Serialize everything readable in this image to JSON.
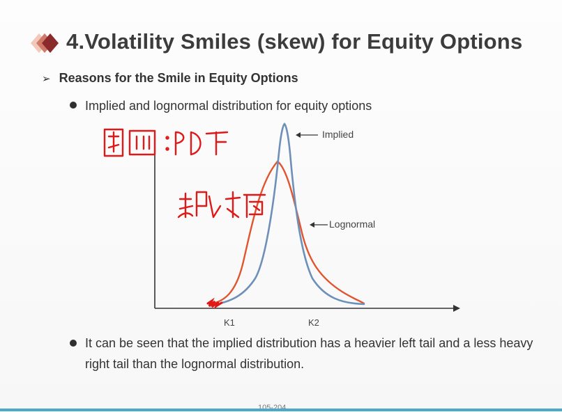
{
  "slide": {
    "title": "4.Volatility Smiles (skew) for Equity Options",
    "sub_heading": "Reasons for the Smile in Equity Options",
    "bullets": [
      "Implied and lognormal distribution for equity options",
      "It can be seen that the implied distribution has a heavier left tail and a less heavy right tail than the lognormal distribution."
    ],
    "page_number": "105-204",
    "accent_color": "#8b2a2a",
    "bottom_bar_color": "#4aa8c9"
  },
  "chart_data": {
    "type": "line",
    "labels": {
      "implied": "Implied",
      "lognormal": "Lognormal",
      "k1": "K1",
      "k2": "K2"
    },
    "series": [
      {
        "name": "Implied",
        "color": "#6d8fb8"
      },
      {
        "name": "Lognormal",
        "color": "#e0552f"
      }
    ],
    "grid": false,
    "handwriting_color": "#e01818"
  }
}
